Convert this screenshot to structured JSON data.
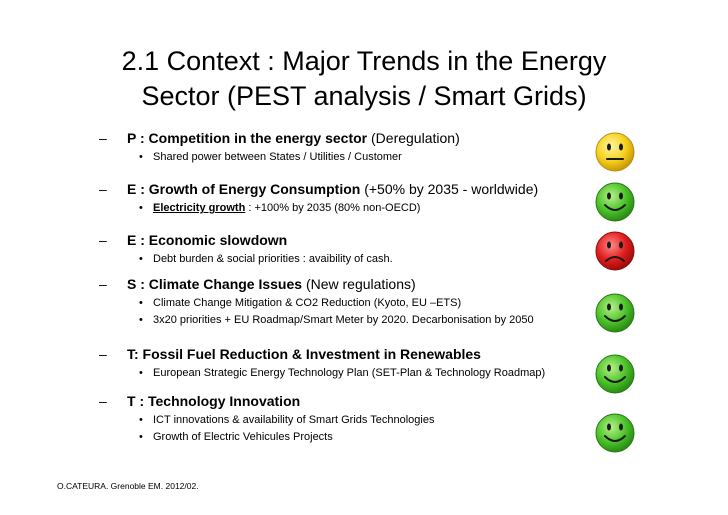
{
  "title": {
    "line1": "2.1 Context : Major Trends in the Energy",
    "line2": "Sector (PEST analysis / Smart Grids)"
  },
  "items": [
    {
      "dash": "–",
      "head_bold": "P : Competition in the energy sector",
      "head_rest": " (Deregulation)",
      "subs": [
        "Shared power between States / Utilities / Customer"
      ],
      "status": "neutral",
      "face_color": "#f6d21e"
    },
    {
      "dash": "–",
      "head_bold": "E : Growth of Energy Consumption",
      "head_rest": " (+50% by 2035 - worldwide)",
      "sub_underlined": "Electricity growth",
      "sub_rest": " : +100% by 2035 (80% non-OECD)",
      "status": "happy",
      "face_color": "#4cc42a"
    },
    {
      "dash": "–",
      "head_bold": "E : Economic slowdown",
      "head_rest": "",
      "subs": [
        "Debt burden & social priorities : avaibility of cash."
      ],
      "status": "sad",
      "face_color": "#e11d1d"
    },
    {
      "dash": "–",
      "head_bold": "S : Climate Change Issues",
      "head_rest": " (New regulations)",
      "subs": [
        "Climate Change Mitigation & CO2 Reduction (Kyoto, EU –ETS)",
        "3x20 priorities  + EU Roadmap/Smart Meter by 2020. Decarbonisation by 2050"
      ],
      "status": "happy",
      "face_color": "#4cc42a"
    },
    {
      "dash": "–",
      "head_bold": "T: Fossil Fuel Reduction & Investment in Renewables",
      "head_rest": "",
      "subs": [
        "European Strategic Energy Technology Plan (SET-Plan & Technology Roadmap)"
      ],
      "status": "happy",
      "face_color": "#4cc42a"
    },
    {
      "dash": "–",
      "head_bold": "T : Technology Innovation",
      "head_rest": "",
      "subs": [
        "ICT innovations & availability of Smart Grids Technologies",
        "Growth of Electric Vehicules Projects"
      ],
      "status": "happy",
      "face_color": "#4cc42a"
    }
  ],
  "bullet": "•",
  "icons": {
    "neutral": "neutral-face-icon",
    "happy": "smiley-face-icon",
    "sad": "sad-face-icon"
  },
  "footer": "O.CATEURA. Grenoble EM. 2012/02."
}
